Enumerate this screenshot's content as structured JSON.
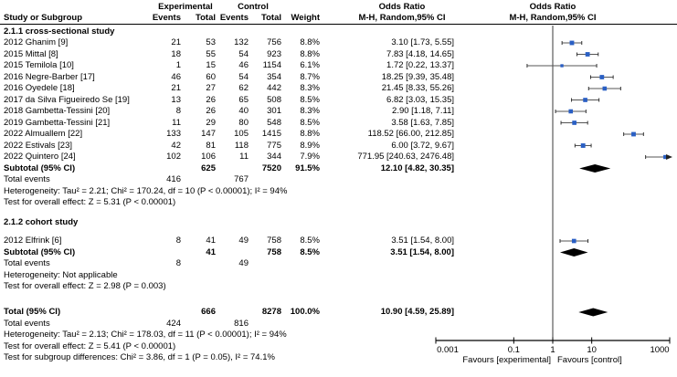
{
  "header": {
    "study": "Study or Subgroup",
    "experimental": "Experimental",
    "control": "Control",
    "events": "Events",
    "total": "Total",
    "weight": "Weight",
    "odds_ratio_line1": "Odds Ratio",
    "odds_ratio_line2": "M-H, Random,95% CI"
  },
  "chart_data": {
    "type": "forest",
    "effect_measure": "Odds Ratio (M-H, Random, 95% CI)",
    "x_scale": "log10",
    "x_min": 0.001,
    "x_max": 1000,
    "x_ticks": [
      0.001,
      0.1,
      1,
      10,
      1000
    ],
    "x_tick_labels": [
      "0.001",
      "0.1",
      "1",
      "10",
      "1000"
    ],
    "null_line": 1,
    "favours_left": "Favours [experimental]",
    "favours_right": "Favours [control]",
    "colors": {
      "square": "#2a5fc4",
      "ci_line": "#555555",
      "diamond": "#000000",
      "axis": "#000000"
    },
    "sections": [
      {
        "label": "2.1.1 cross-sectional study",
        "studies": [
          {
            "study": "2012 Ghanim [9]",
            "exp_events": "21",
            "exp_total": "53",
            "ctrl_events": "132",
            "ctrl_total": "756",
            "weight": "8.8%",
            "or_text": "3.10 [1.73, 5.55]",
            "or": 3.1,
            "ci_low": 1.73,
            "ci_high": 5.55
          },
          {
            "study": "2015 Mittal [8]",
            "exp_events": "18",
            "exp_total": "55",
            "ctrl_events": "54",
            "ctrl_total": "923",
            "weight": "8.8%",
            "or_text": "7.83 [4.18, 14.65]",
            "or": 7.83,
            "ci_low": 4.18,
            "ci_high": 14.65
          },
          {
            "study": "2015 Temilola [10]",
            "exp_events": "1",
            "exp_total": "15",
            "ctrl_events": "46",
            "ctrl_total": "1154",
            "weight": "6.1%",
            "or_text": "1.72 [0.22, 13.37]",
            "or": 1.72,
            "ci_low": 0.22,
            "ci_high": 13.37
          },
          {
            "study": "2016 Negre-Barber [17]",
            "exp_events": "46",
            "exp_total": "60",
            "ctrl_events": "54",
            "ctrl_total": "354",
            "weight": "8.7%",
            "or_text": "18.25 [9.39, 35.48]",
            "or": 18.25,
            "ci_low": 9.39,
            "ci_high": 35.48
          },
          {
            "study": "2016 Oyedele [18]",
            "exp_events": "21",
            "exp_total": "27",
            "ctrl_events": "62",
            "ctrl_total": "442",
            "weight": "8.3%",
            "or_text": "21.45 [8.33, 55.26]",
            "or": 21.45,
            "ci_low": 8.33,
            "ci_high": 55.26
          },
          {
            "study": "2017 da Silva Figueiredo Se [19]",
            "exp_events": "13",
            "exp_total": "26",
            "ctrl_events": "65",
            "ctrl_total": "508",
            "weight": "8.5%",
            "or_text": "6.82 [3.03, 15.35]",
            "or": 6.82,
            "ci_low": 3.03,
            "ci_high": 15.35
          },
          {
            "study": "2018 Gambetta-Tessini [20]",
            "exp_events": "8",
            "exp_total": "26",
            "ctrl_events": "40",
            "ctrl_total": "301",
            "weight": "8.3%",
            "or_text": "2.90 [1.18, 7.11]",
            "or": 2.9,
            "ci_low": 1.18,
            "ci_high": 7.11
          },
          {
            "study": "2019 Gambetta-Tessini [21]",
            "exp_events": "11",
            "exp_total": "29",
            "ctrl_events": "80",
            "ctrl_total": "548",
            "weight": "8.5%",
            "or_text": "3.58 [1.63, 7.85]",
            "or": 3.58,
            "ci_low": 1.63,
            "ci_high": 7.85
          },
          {
            "study": "2022 Almuallem [22]",
            "exp_events": "133",
            "exp_total": "147",
            "ctrl_events": "105",
            "ctrl_total": "1415",
            "weight": "8.8%",
            "or_text": "118.52 [66.00, 212.85]",
            "or": 118.52,
            "ci_low": 66.0,
            "ci_high": 212.85
          },
          {
            "study": "2022 Estivals [23]",
            "exp_events": "42",
            "exp_total": "81",
            "ctrl_events": "118",
            "ctrl_total": "775",
            "weight": "8.9%",
            "or_text": "6.00 [3.72, 9.67]",
            "or": 6.0,
            "ci_low": 3.72,
            "ci_high": 9.67
          },
          {
            "study": "2022 Quintero [24]",
            "exp_events": "102",
            "exp_total": "106",
            "ctrl_events": "11",
            "ctrl_total": "344",
            "weight": "7.9%",
            "or_text": "771.95 [240.63, 2476.48]",
            "or": 771.95,
            "ci_low": 240.63,
            "ci_high": 2476.48
          }
        ],
        "subtotal": {
          "label": "Subtotal (95% CI)",
          "exp_total": "625",
          "ctrl_total": "7520",
          "weight": "91.5%",
          "or_text": "12.10 [4.82, 30.35]",
          "or": 12.1,
          "ci_low": 4.82,
          "ci_high": 30.35
        },
        "total_events": {
          "label": "Total events",
          "exp": "416",
          "ctrl": "767"
        },
        "heterogeneity": "Heterogeneity: Tau² = 2.21; Chi² = 170.24, df = 10 (P < 0.00001); I² = 94%",
        "overall_effect": "Test for overall effect: Z = 5.31 (P < 0.00001)"
      },
      {
        "label": "2.1.2 cohort study",
        "studies": [
          {
            "study": "2012 Elfrink [6]",
            "exp_events": "8",
            "exp_total": "41",
            "ctrl_events": "49",
            "ctrl_total": "758",
            "weight": "8.5%",
            "or_text": "3.51 [1.54, 8.00]",
            "or": 3.51,
            "ci_low": 1.54,
            "ci_high": 8.0
          }
        ],
        "subtotal": {
          "label": "Subtotal (95% CI)",
          "exp_total": "41",
          "ctrl_total": "758",
          "weight": "8.5%",
          "or_text": "3.51 [1.54, 8.00]",
          "or": 3.51,
          "ci_low": 1.54,
          "ci_high": 8.0
        },
        "total_events": {
          "label": "Total events",
          "exp": "8",
          "ctrl": "49"
        },
        "heterogeneity": "Heterogeneity: Not applicable",
        "overall_effect": "Test for overall effect: Z = 2.98 (P = 0.003)"
      }
    ],
    "overall": {
      "label": "Total (95% CI)",
      "exp_total": "666",
      "ctrl_total": "8278",
      "weight": "100.0%",
      "or_text": "10.90 [4.59, 25.89]",
      "or": 10.9,
      "ci_low": 4.59,
      "ci_high": 25.89,
      "total_events": {
        "label": "Total events",
        "exp": "424",
        "ctrl": "816"
      },
      "heterogeneity": "Heterogeneity: Tau² = 2.13; Chi² = 178.03, df = 11 (P < 0.00001); I² = 94%",
      "overall_effect": "Test for overall effect: Z = 5.41 (P < 0.00001)",
      "subgroup_differences": "Test for subgroup differences: Chi² = 3.86, df = 1 (P = 0.05), I² = 74.1%"
    }
  }
}
